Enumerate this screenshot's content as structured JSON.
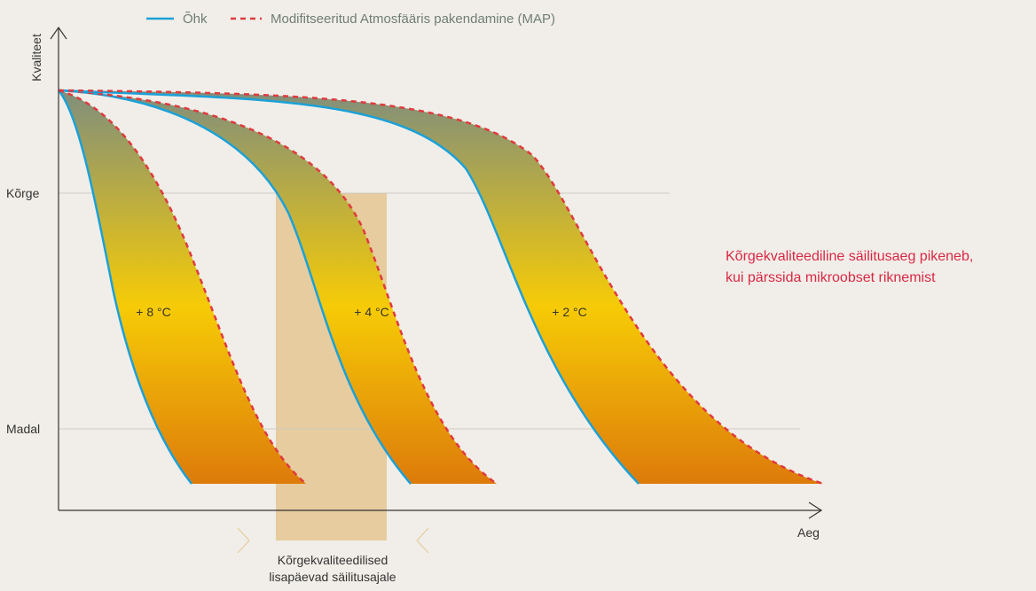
{
  "colors": {
    "background": "#f1eee9",
    "air_line": "#1ba1d8",
    "map_line": "#e03a3e",
    "axis": "#333333",
    "grid": "#cfcac3",
    "gradient_top": "#7f8e7d",
    "gradient_mid": "#f6cb06",
    "gradient_bottom": "#dd7a0a",
    "extra_days_band": "#e6cc9e",
    "callout_text": "#d92844",
    "legend_text": "#6f7e74"
  },
  "chart_data": {
    "type": "area",
    "title": "",
    "xlabel": "Aeg",
    "ylabel": "Kvaliteet",
    "y_ticks": [
      {
        "label": "Kõrge"
      },
      {
        "label": "Madal"
      }
    ],
    "grid": "horizontal lines at Kõrge and Madal",
    "legend_position": "top",
    "legend": [
      {
        "label": "Õhk",
        "style": "solid",
        "color": "#1ba1d8"
      },
      {
        "label": "Modifitseeritud Atmosfääris pakendamine (MAP)",
        "style": "dashed",
        "color": "#e03a3e"
      }
    ],
    "series": [
      {
        "name": "+ 8 °C",
        "label": "+ 8 °C"
      },
      {
        "name": "+ 4 °C",
        "label": "+ 4 °C"
      },
      {
        "name": "+ 2 °C",
        "label": "+ 2 °C"
      }
    ],
    "callout": {
      "lines": [
        "Kõrgekvaliteediline säilitusaeg pikeneb,",
        "kui pärssida mikroobset riknemist"
      ]
    },
    "band_annotation": {
      "lines": [
        "Kõrgekvaliteedilised",
        "lisapäevad säilitusajale"
      ]
    }
  }
}
